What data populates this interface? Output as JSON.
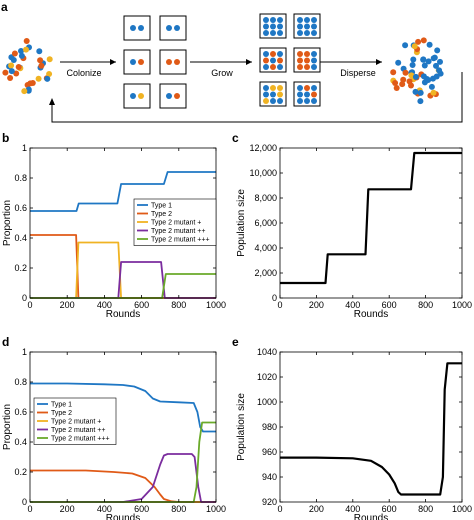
{
  "panel_a": {
    "letter": "a",
    "steps": [
      {
        "label": "Colonize"
      },
      {
        "label": "Grow"
      },
      {
        "label": "Disperse"
      }
    ]
  },
  "colors": {
    "type1": "#1f77c4",
    "type2": "#e05a17",
    "mut1": "#f0b323",
    "mut2": "#7b2d9e",
    "mut3": "#6aaa2a",
    "black": "#000000"
  },
  "chart_data": [
    {
      "id": "b",
      "letter": "b",
      "type": "line",
      "xlabel": "Rounds",
      "ylabel": "Proportion",
      "xlim": [
        0,
        1000
      ],
      "ylim": [
        0,
        1
      ],
      "xticks": [
        0,
        200,
        400,
        600,
        800,
        1000
      ],
      "yticks": [
        0,
        0.2,
        0.4,
        0.6,
        0.8,
        1
      ],
      "ytick_labels": [
        "0",
        "0.2",
        "0.4",
        "0.6",
        "0.8",
        "1"
      ],
      "legend": {
        "placement": "center-right"
      },
      "series": [
        {
          "name": "Type 1",
          "color": "#1f77c4",
          "x": [
            0,
            250,
            262,
            470,
            490,
            720,
            740,
            1000
          ],
          "y": [
            0.58,
            0.58,
            0.63,
            0.63,
            0.76,
            0.76,
            0.84,
            0.84
          ]
        },
        {
          "name": "Type 2",
          "color": "#e05a17",
          "x": [
            0,
            248,
            260,
            1000
          ],
          "y": [
            0.42,
            0.42,
            0.0,
            0.0
          ]
        },
        {
          "name": "Type 2 mutant +",
          "color": "#f0b323",
          "x": [
            0,
            248,
            260,
            475,
            490,
            1000
          ],
          "y": [
            0,
            0,
            0.37,
            0.37,
            0.0,
            0.0
          ]
        },
        {
          "name": "Type 2 mutant ++",
          "color": "#7b2d9e",
          "x": [
            0,
            475,
            490,
            705,
            725,
            1000
          ],
          "y": [
            0,
            0,
            0.24,
            0.24,
            0.0,
            0.0
          ]
        },
        {
          "name": "Type 2 mutant +++",
          "color": "#6aaa2a",
          "x": [
            0,
            710,
            730,
            1000
          ],
          "y": [
            0,
            0,
            0.16,
            0.16
          ]
        }
      ]
    },
    {
      "id": "c",
      "letter": "c",
      "type": "line",
      "xlabel": "Rounds",
      "ylabel": "Population size",
      "xlim": [
        0,
        1000
      ],
      "ylim": [
        0,
        12000
      ],
      "xticks": [
        0,
        200,
        400,
        600,
        800,
        1000
      ],
      "yticks": [
        0,
        2000,
        4000,
        6000,
        8000,
        10000,
        12000
      ],
      "ytick_labels": [
        "0",
        "2,000",
        "4,000",
        "6,000",
        "8,000",
        "10,000",
        "12,000"
      ],
      "series": [
        {
          "color": "#000000",
          "x": [
            0,
            250,
            262,
            470,
            485,
            720,
            738,
            1000
          ],
          "y": [
            1200,
            1200,
            3500,
            3500,
            8700,
            8700,
            11600,
            11600
          ]
        }
      ]
    },
    {
      "id": "d",
      "letter": "d",
      "type": "line",
      "xlabel": "Rounds",
      "ylabel": "Proportion",
      "xlim": [
        0,
        1000
      ],
      "ylim": [
        0,
        1
      ],
      "xticks": [
        0,
        200,
        400,
        600,
        800,
        1000
      ],
      "yticks": [
        0,
        0.2,
        0.4,
        0.6,
        0.8,
        1
      ],
      "ytick_labels": [
        "0",
        "0.2",
        "0.4",
        "0.6",
        "0.8",
        "1"
      ],
      "legend": {
        "placement": "center-left"
      },
      "series": [
        {
          "name": "Type 1",
          "color": "#1f77c4",
          "x": [
            0,
            200,
            400,
            500,
            560,
            620,
            660,
            700,
            800,
            880,
            900,
            915,
            930,
            1000
          ],
          "y": [
            0.79,
            0.79,
            0.785,
            0.78,
            0.77,
            0.74,
            0.69,
            0.67,
            0.665,
            0.66,
            0.6,
            0.5,
            0.47,
            0.47
          ]
        },
        {
          "name": "Type 2",
          "color": "#e05a17",
          "x": [
            0,
            300,
            450,
            550,
            620,
            670,
            700,
            720,
            760,
            800,
            1000
          ],
          "y": [
            0.21,
            0.21,
            0.2,
            0.19,
            0.16,
            0.1,
            0.05,
            0.02,
            0.005,
            0.0,
            0.0
          ]
        },
        {
          "name": "Type 2 mutant +",
          "color": "#f0b323",
          "x": [
            0,
            1000
          ],
          "y": [
            0,
            0
          ]
        },
        {
          "name": "Type 2 mutant ++",
          "color": "#7b2d9e",
          "x": [
            0,
            500,
            600,
            660,
            700,
            720,
            740,
            870,
            885,
            905,
            920,
            1000
          ],
          "y": [
            0,
            0,
            0.02,
            0.1,
            0.25,
            0.31,
            0.32,
            0.32,
            0.3,
            0.1,
            0.0,
            0.0
          ]
        },
        {
          "name": "Type 2 mutant +++",
          "color": "#6aaa2a",
          "x": [
            0,
            880,
            895,
            910,
            925,
            1000
          ],
          "y": [
            0,
            0,
            0.1,
            0.4,
            0.53,
            0.53
          ]
        }
      ]
    },
    {
      "id": "e",
      "letter": "e",
      "type": "line",
      "xlabel": "Rounds",
      "ylabel": "Population size",
      "xlim": [
        0,
        1000
      ],
      "ylim": [
        920,
        1040
      ],
      "xticks": [
        0,
        200,
        400,
        600,
        800,
        1000
      ],
      "yticks": [
        920,
        940,
        960,
        980,
        1000,
        1020,
        1040
      ],
      "ytick_labels": [
        "920",
        "940",
        "960",
        "980",
        "1000",
        "1020",
        "1040"
      ],
      "series": [
        {
          "color": "#000000",
          "x": [
            0,
            200,
            400,
            500,
            560,
            600,
            630,
            650,
            665,
            680,
            800,
            880,
            895,
            905,
            920,
            1000
          ],
          "y": [
            955.5,
            955.5,
            955,
            953,
            948,
            942,
            935,
            928,
            926,
            926,
            926,
            926,
            940,
            1010,
            1031,
            1031
          ]
        }
      ]
    }
  ]
}
